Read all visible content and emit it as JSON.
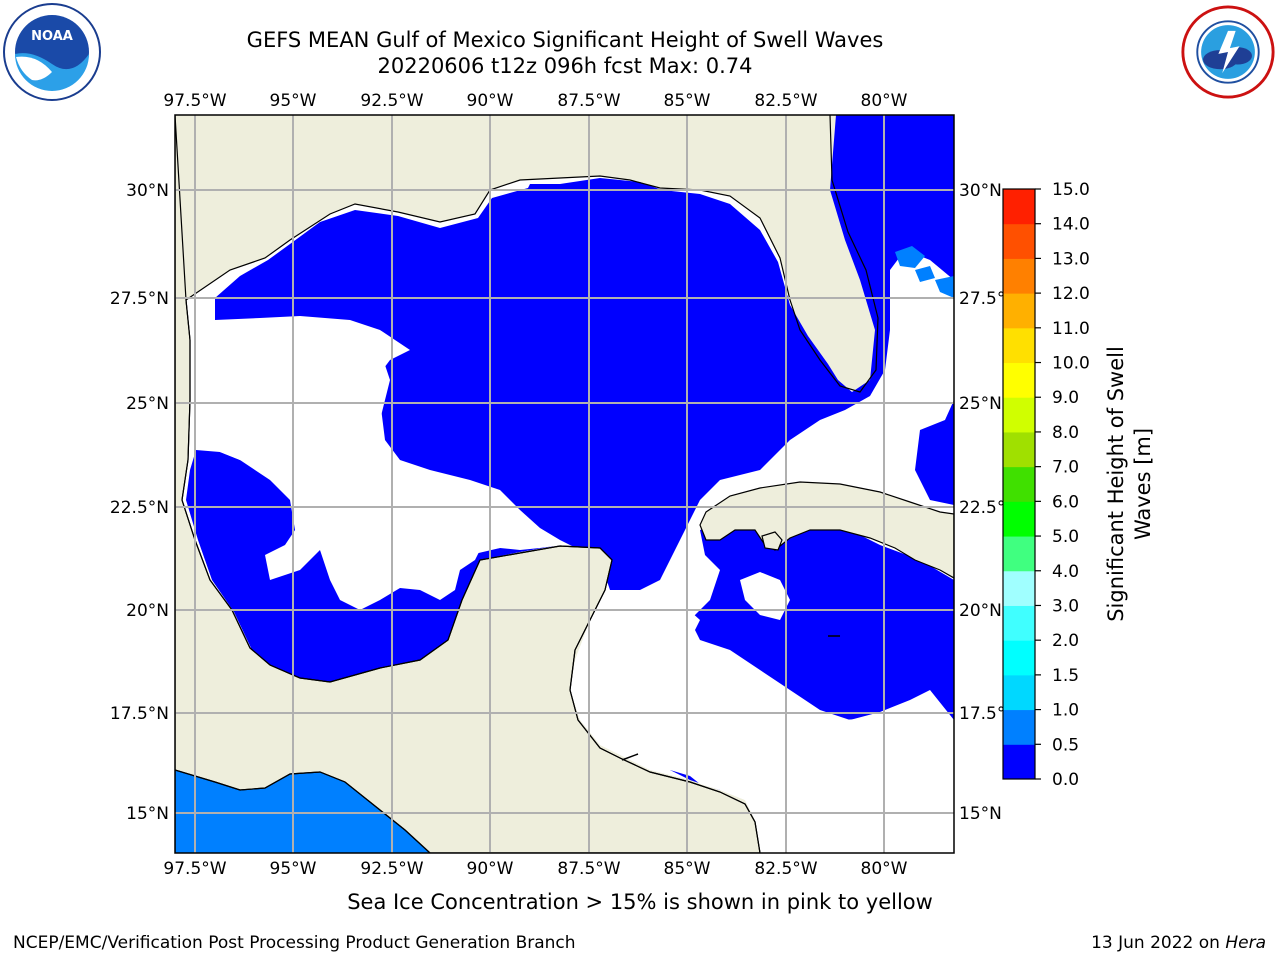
{
  "title": {
    "line1": "GEFS MEAN Gulf of Mexico Significant Height of Swell Waves",
    "line2": "20220606 t12z 096h fcst   Max: 0.74"
  },
  "logos": {
    "left": "noaa-logo",
    "right": "nws-logo"
  },
  "map": {
    "lon_labels": [
      "97.5°W",
      "95°W",
      "92.5°W",
      "90°W",
      "87.5°W",
      "85°W",
      "82.5°W",
      "80°W"
    ],
    "lat_labels": [
      "30°N",
      "27.5°N",
      "25°N",
      "22.5°N",
      "20°N",
      "17.5°N",
      "15°N"
    ],
    "colors": {
      "land": "#eeeedc",
      "ocean_low": "#0000ff",
      "ocean_mid": "#0080ff",
      "grid": "#b0b0b0",
      "coast": "#000000"
    }
  },
  "colorbar": {
    "label_line1": "Significant Height of Swell",
    "label_line2": "Waves [m]",
    "ticks": [
      "0.0",
      "0.5",
      "1.0",
      "1.5",
      "2.0",
      "3.0",
      "4.0",
      "5.0",
      "6.0",
      "7.0",
      "8.0",
      "9.0",
      "10.0",
      "11.0",
      "12.0",
      "13.0",
      "14.0",
      "15.0"
    ],
    "colors": [
      "#0000ff",
      "#0080ff",
      "#00d8ff",
      "#00ffff",
      "#40ffff",
      "#a0ffff",
      "#40ff80",
      "#00ff00",
      "#40e000",
      "#a0e000",
      "#d0ff00",
      "#ffff00",
      "#ffe000",
      "#ffb000",
      "#ff8000",
      "#ff5000",
      "#ff2000",
      "#ff0000"
    ]
  },
  "ice_note": "Sea Ice Concentration > 15% is shown in pink to yellow",
  "footer": {
    "left": "NCEP/EMC/Verification Post Processing Product Generation Branch",
    "date": "13 Jun 2022 on ",
    "host": "Hera"
  }
}
